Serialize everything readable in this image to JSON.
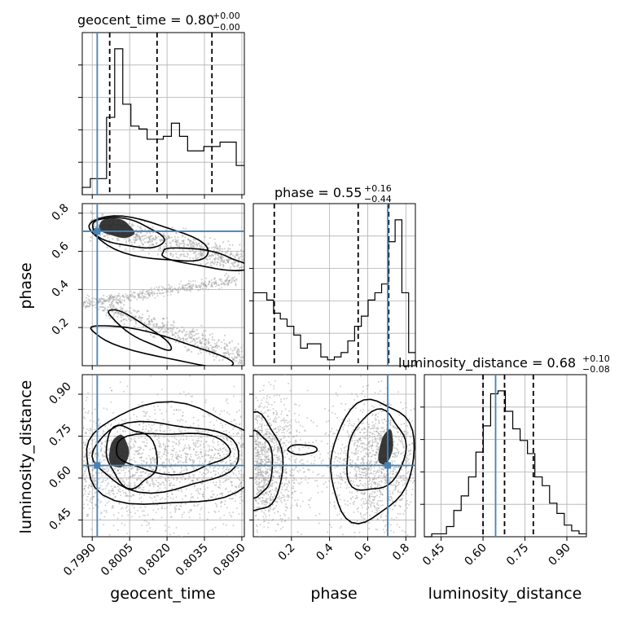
{
  "chart_data": {
    "type": "corner",
    "parameters": [
      "geocent_time",
      "phase",
      "luminosity_distance"
    ],
    "axis_labels": {
      "geocent_time": "geocent_time",
      "phase": "phase",
      "luminosity_distance": "luminosity_distance"
    },
    "ranges": {
      "geocent_time": [
        0.7986,
        0.8051
      ],
      "phase": [
        0.0,
        0.85
      ],
      "luminosity_distance": [
        0.39,
        0.97
      ]
    },
    "ticks": {
      "geocent_time": [
        "0.7990",
        "0.8005",
        "0.8020",
        "0.8035",
        "0.8050"
      ],
      "geocent_time_values": [
        0.799,
        0.8005,
        0.802,
        0.8035,
        0.805
      ],
      "phase": [
        "0.2",
        "0.4",
        "0.6",
        "0.8"
      ],
      "phase_values": [
        0.2,
        0.4,
        0.6,
        0.8
      ],
      "luminosity_distance": [
        "0.45",
        "0.60",
        "0.75",
        "0.90"
      ],
      "luminosity_distance_values": [
        0.45,
        0.6,
        0.75,
        0.9
      ]
    },
    "titles": {
      "geocent_time": {
        "prefix": "geocent_time = 0.80",
        "plus": "+0.00",
        "minus": "−0.00"
      },
      "phase": {
        "prefix": "phase = 0.55",
        "plus": "+0.16",
        "minus": "−0.44"
      },
      "luminosity_distance": {
        "prefix": "luminosity_distance = 0.68",
        "plus": "+0.10",
        "minus": "−0.08"
      }
    },
    "truths": {
      "geocent_time": 0.7992,
      "phase": 0.705,
      "luminosity_distance": 0.645
    },
    "quantiles": {
      "geocent_time": [
        0.7997,
        0.8016,
        0.8038
      ],
      "phase": [
        0.11,
        0.55,
        0.71
      ],
      "luminosity_distance": [
        0.6,
        0.677,
        0.78
      ]
    },
    "histograms": {
      "geocent_time": [
        0.05,
        0.11,
        0.11,
        0.53,
        1.0,
        0.62,
        0.47,
        0.45,
        0.38,
        0.38,
        0.4,
        0.49,
        0.4,
        0.3,
        0.3,
        0.33,
        0.33,
        0.36,
        0.36,
        0.2
      ],
      "phase": [
        0.5,
        0.5,
        0.45,
        0.36,
        0.32,
        0.27,
        0.21,
        0.12,
        0.15,
        0.15,
        0.06,
        0.04,
        0.06,
        0.09,
        0.17,
        0.27,
        0.34,
        0.45,
        0.5,
        0.56,
        0.85,
        1.0,
        0.5,
        0.09
      ],
      "luminosity_distance": [
        0.0,
        0.02,
        0.02,
        0.07,
        0.18,
        0.28,
        0.41,
        0.58,
        0.76,
        0.98,
        1.0,
        0.86,
        0.74,
        0.66,
        0.57,
        0.41,
        0.35,
        0.23,
        0.16,
        0.08,
        0.04,
        0.02
      ]
    },
    "grid": true,
    "colors": {
      "truth": "#4682b4",
      "hist": "#000000",
      "scatter": "#9a9a9a"
    }
  }
}
